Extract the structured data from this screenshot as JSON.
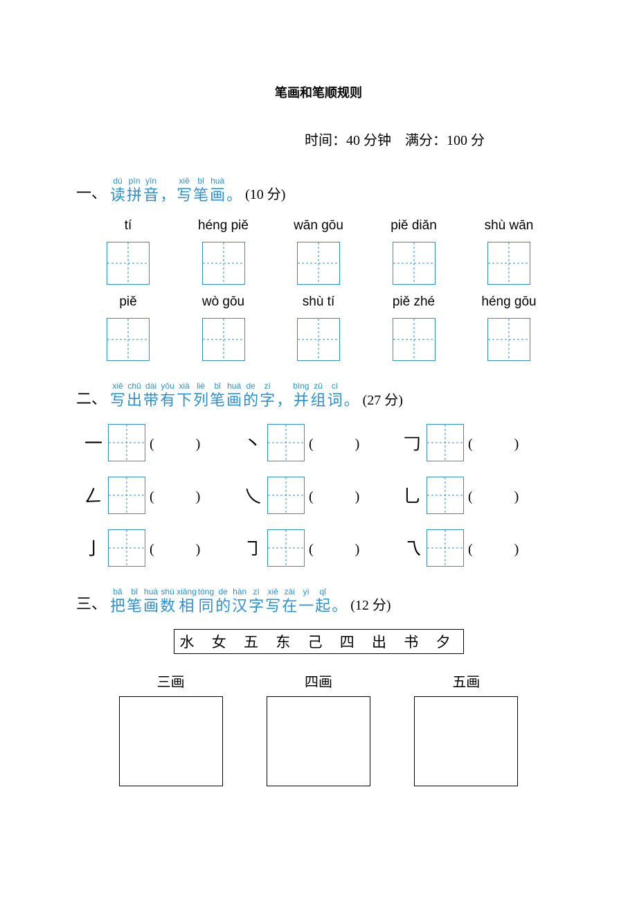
{
  "title": "笔画和笔顺规则",
  "meta": {
    "time_label": "时间：",
    "time_value": "40 分钟",
    "score_label": "满分：",
    "score_value": "100 分"
  },
  "colors": {
    "accent": "#2b8fd6",
    "text": "#000000",
    "bg": "#ffffff"
  },
  "section1": {
    "marker": "一、",
    "heading_chars": [
      {
        "py": "dú",
        "zh": "读"
      },
      {
        "py": "pīn",
        "zh": "拼"
      },
      {
        "py": "yīn",
        "zh": "音"
      },
      {
        "py": "",
        "zh": "，"
      },
      {
        "py": "xiě",
        "zh": "写"
      },
      {
        "py": "bǐ",
        "zh": "笔"
      },
      {
        "py": "huà",
        "zh": "画"
      },
      {
        "py": "",
        "zh": "。"
      }
    ],
    "score": "(10 分)",
    "row1": [
      "tí",
      "héng piě",
      "wān gōu",
      "piě diǎn",
      "shù wān"
    ],
    "row2": [
      "piě",
      "wò gōu",
      "shù tí",
      "piě zhé",
      "héng gōu"
    ]
  },
  "section2": {
    "marker": "二、",
    "heading_chars": [
      {
        "py": "xiě",
        "zh": "写"
      },
      {
        "py": "chū",
        "zh": "出"
      },
      {
        "py": "dài",
        "zh": "带"
      },
      {
        "py": "yǒu",
        "zh": "有"
      },
      {
        "py": "xià",
        "zh": "下"
      },
      {
        "py": "liè",
        "zh": "列"
      },
      {
        "py": "bǐ",
        "zh": "笔"
      },
      {
        "py": "huà",
        "zh": "画"
      },
      {
        "py": "de",
        "zh": "的"
      },
      {
        "py": "zì",
        "zh": "字"
      },
      {
        "py": "",
        "zh": "，"
      },
      {
        "py": "bìng",
        "zh": "并"
      },
      {
        "py": "zǔ",
        "zh": "组"
      },
      {
        "py": "cí",
        "zh": "词"
      },
      {
        "py": "",
        "zh": "。"
      }
    ],
    "score": "(27 分)",
    "rows": [
      [
        "一",
        "丶",
        "𠃌"
      ],
      [
        "𠃋",
        "乀",
        "乚"
      ],
      [
        "亅",
        "㇆",
        "乁"
      ]
    ]
  },
  "section3": {
    "marker": "三、",
    "heading_chars": [
      {
        "py": "bǎ",
        "zh": "把"
      },
      {
        "py": "bǐ",
        "zh": "笔"
      },
      {
        "py": "huà",
        "zh": "画"
      },
      {
        "py": "shù",
        "zh": "数"
      },
      {
        "py": "xiāng",
        "zh": "相"
      },
      {
        "py": "tóng",
        "zh": "同"
      },
      {
        "py": "de",
        "zh": "的"
      },
      {
        "py": "hàn",
        "zh": "汉"
      },
      {
        "py": "zì",
        "zh": "字"
      },
      {
        "py": "xiě",
        "zh": "写"
      },
      {
        "py": "zài",
        "zh": "在"
      },
      {
        "py": "yì",
        "zh": "一"
      },
      {
        "py": "qǐ",
        "zh": "起"
      },
      {
        "py": "",
        "zh": "。"
      }
    ],
    "score": "(12 分)",
    "bank": "水 女 五 东 己 四 出 书 夕",
    "boxes": [
      "三画",
      "四画",
      "五画"
    ]
  },
  "paren_text": "(　)"
}
